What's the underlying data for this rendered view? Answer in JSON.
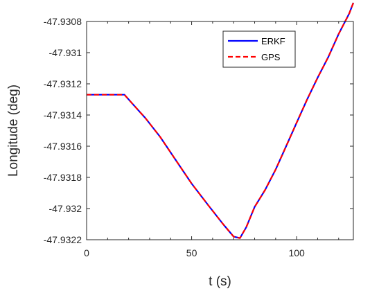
{
  "chart_data": {
    "type": "line",
    "xlabel": "t (s)",
    "ylabel": "Longitude (deg)",
    "xlim": [
      0,
      127
    ],
    "ylim": [
      -47.9322,
      -47.9308
    ],
    "xticks": [
      0,
      50,
      100
    ],
    "xtick_labels": [
      "0",
      "50",
      "100"
    ],
    "yticks": [
      -47.9308,
      -47.931,
      -47.9312,
      -47.9314,
      -47.9316,
      -47.9318,
      -47.932,
      -47.9322
    ],
    "ytick_labels": [
      "-47.9308",
      "-47.931",
      "-47.9312",
      "-47.9314",
      "-47.9316",
      "-47.9318",
      "-47.932",
      "-47.9322"
    ],
    "grid": false,
    "legend_position": "top-right",
    "x": [
      0,
      5,
      10,
      15,
      18,
      22,
      28,
      35,
      42,
      50,
      58,
      65,
      70,
      73,
      76,
      80,
      85,
      90,
      95,
      100,
      105,
      110,
      115,
      120,
      125,
      127
    ],
    "series": [
      {
        "name": "ERKF",
        "color": "#0000ff",
        "style": "solid",
        "values": [
          -47.93127,
          -47.93127,
          -47.93127,
          -47.93127,
          -47.93127,
          -47.93133,
          -47.93142,
          -47.93154,
          -47.93168,
          -47.93184,
          -47.93198,
          -47.9321,
          -47.93218,
          -47.93219,
          -47.93212,
          -47.93199,
          -47.93188,
          -47.93175,
          -47.9316,
          -47.93145,
          -47.9313,
          -47.93116,
          -47.93103,
          -47.93088,
          -47.93075,
          -47.93068
        ]
      },
      {
        "name": "GPS",
        "color": "#ff0000",
        "style": "dashed",
        "values": [
          -47.93127,
          -47.93127,
          -47.93127,
          -47.93127,
          -47.93127,
          -47.93133,
          -47.93142,
          -47.93154,
          -47.93168,
          -47.93184,
          -47.93198,
          -47.9321,
          -47.93218,
          -47.93219,
          -47.93212,
          -47.93199,
          -47.93188,
          -47.93175,
          -47.9316,
          -47.93145,
          -47.9313,
          -47.93116,
          -47.93103,
          -47.93088,
          -47.93075,
          -47.93068
        ]
      }
    ]
  }
}
